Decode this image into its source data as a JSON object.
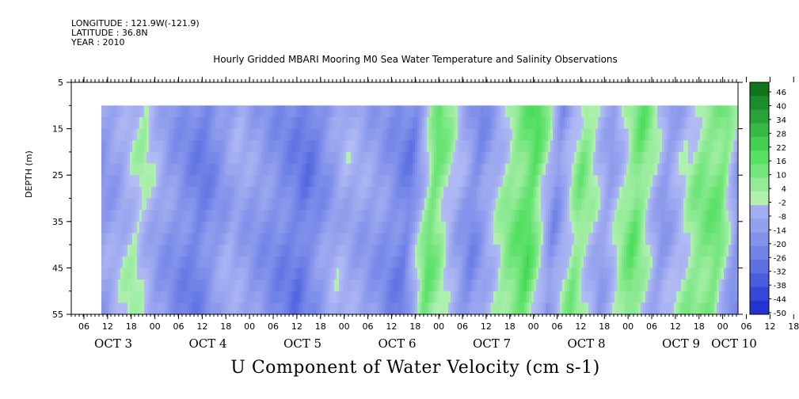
{
  "header": {
    "longitude": "LONGITUDE : 121.9W(-121.9)",
    "latitude": "LATITUDE : 36.8N",
    "year": "YEAR : 2010"
  },
  "chart_data": {
    "type": "heatmap",
    "title": "Hourly Gridded MBARI Mooring M0 Sea Water Temperature and Salinity Observations",
    "variable_label": "U Component of Water Velocity (cm s-1)",
    "ylabel": "DEPTH (m)",
    "xlabel": "",
    "y_range": [
      5,
      55
    ],
    "y_inverted": true,
    "y_ticks": [
      5,
      15,
      25,
      35,
      45,
      55
    ],
    "data_depth_range": [
      10,
      55
    ],
    "x_hour_ticks": [
      "06",
      "12",
      "18",
      "00",
      "06",
      "12",
      "18",
      "00",
      "06",
      "12",
      "18",
      "00",
      "06",
      "12",
      "18",
      "00",
      "06",
      "12",
      "18",
      "00",
      "06",
      "12",
      "18",
      "00",
      "06",
      "12",
      "18",
      "00",
      "06",
      "12",
      "18",
      "00"
    ],
    "x_day_labels": [
      "OCT  3",
      "OCT  4",
      "OCT  5",
      "OCT  6",
      "OCT  7",
      "OCT  8",
      "OCT  9",
      "OCT 10"
    ],
    "colorbar_ticks": [
      46,
      40,
      34,
      28,
      22,
      16,
      10,
      4,
      -2,
      -8,
      -14,
      -20,
      -26,
      -32,
      -38,
      -44,
      -50
    ],
    "color_range": [
      -50,
      50
    ],
    "colors": {
      "negative_deep": "#1a2ad0",
      "negative_mid": "#6d7fe6",
      "negative_light": "#b4bdf4",
      "positive_light": "#b2f0b2",
      "positive_mid": "#4ade5a",
      "positive_deep": "#0a6a16"
    },
    "band_profile": [
      {
        "day_offset": 0.0,
        "value": -14
      },
      {
        "day_offset": 0.2,
        "value": -10
      },
      {
        "day_offset": 0.45,
        "value": 2
      },
      {
        "day_offset": 0.7,
        "value": -12
      },
      {
        "day_offset": 1.1,
        "value": -24
      },
      {
        "day_offset": 1.45,
        "value": -8
      },
      {
        "day_offset": 1.8,
        "value": -16
      },
      {
        "day_offset": 2.2,
        "value": -26
      },
      {
        "day_offset": 2.6,
        "value": -6
      },
      {
        "day_offset": 3.0,
        "value": -14
      },
      {
        "day_offset": 3.3,
        "value": -24
      },
      {
        "day_offset": 3.55,
        "value": 14
      },
      {
        "day_offset": 3.8,
        "value": -6
      },
      {
        "day_offset": 4.0,
        "value": -20
      },
      {
        "day_offset": 4.35,
        "value": 6
      },
      {
        "day_offset": 4.6,
        "value": 18
      },
      {
        "day_offset": 4.85,
        "value": -18
      },
      {
        "day_offset": 5.1,
        "value": 10
      },
      {
        "day_offset": 5.4,
        "value": -12
      },
      {
        "day_offset": 5.7,
        "value": 14
      },
      {
        "day_offset": 6.0,
        "value": -14
      },
      {
        "day_offset": 6.35,
        "value": 8
      },
      {
        "day_offset": 6.6,
        "value": 12
      },
      {
        "day_offset": 6.8,
        "value": -18
      }
    ]
  }
}
